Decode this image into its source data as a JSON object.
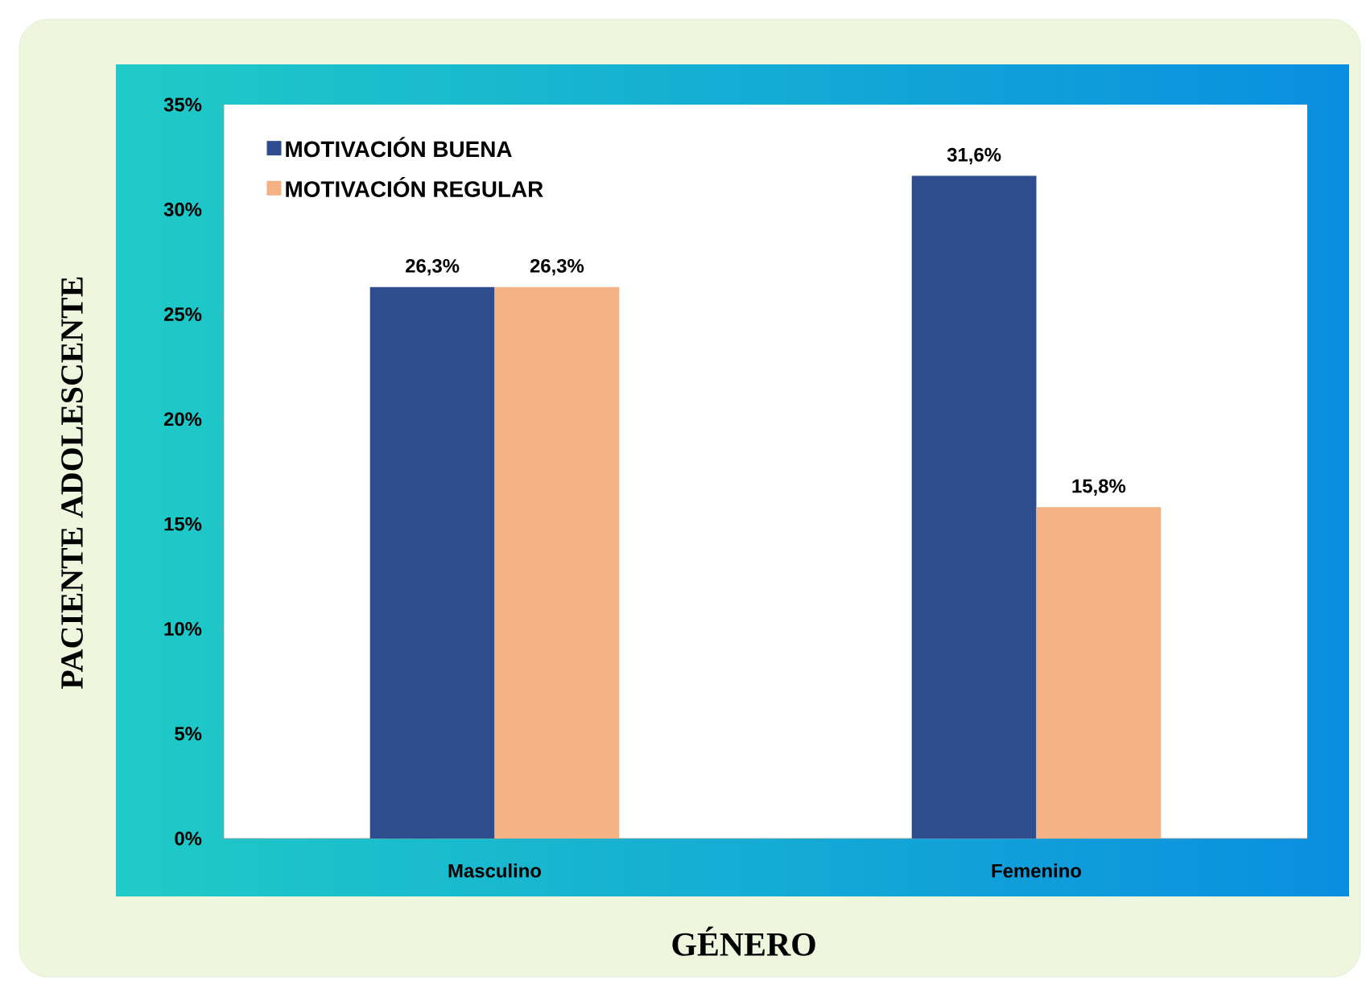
{
  "chart_data": {
    "type": "bar",
    "xlabel": "GÉNERO",
    "ylabel": "PACIENTE ADOLESCENTE",
    "categories": [
      "Masculino",
      "Femenino"
    ],
    "series": [
      {
        "name": "MOTIVACIÓN BUENA",
        "color": "#2e4d8e",
        "values": [
          26.3,
          31.6
        ],
        "value_labels": [
          "26,3%",
          "31,6%"
        ]
      },
      {
        "name": "MOTIVACIÓN REGULAR",
        "color": "#f4b183",
        "values": [
          26.3,
          15.8
        ],
        "value_labels": [
          "26,3%",
          "15,8%"
        ]
      }
    ],
    "ylim": [
      0,
      35
    ],
    "yticks": [
      {
        "value": 0,
        "label": "0%"
      },
      {
        "value": 5,
        "label": "5%"
      },
      {
        "value": 10,
        "label": "10%"
      },
      {
        "value": 15,
        "label": "15%"
      },
      {
        "value": 20,
        "label": "20%"
      },
      {
        "value": 25,
        "label": "25%"
      },
      {
        "value": 30,
        "label": "30%"
      },
      {
        "value": 35,
        "label": "35%"
      }
    ],
    "legend": "top left"
  }
}
